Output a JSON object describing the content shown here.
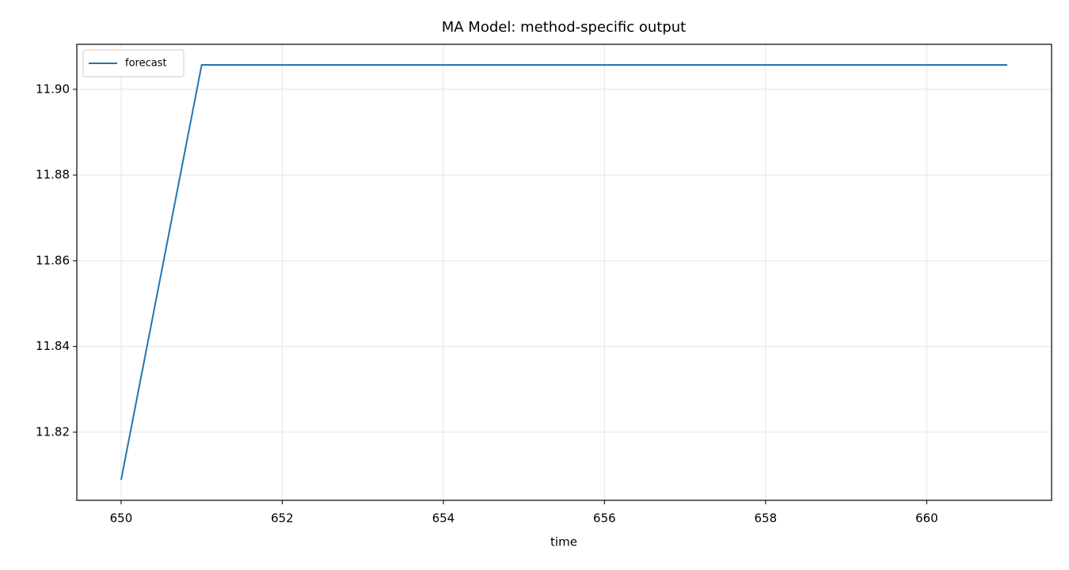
{
  "chart_data": {
    "type": "line",
    "title": "MA Model: method-specific output",
    "xlabel": "time",
    "x": [
      650,
      651,
      652,
      653,
      654,
      655,
      656,
      657,
      658,
      659,
      660,
      661
    ],
    "series": [
      {
        "name": "forecast",
        "color": "#1f77b4",
        "values": [
          11.8089,
          11.9057,
          11.9057,
          11.9057,
          11.9057,
          11.9057,
          11.9057,
          11.9057,
          11.9057,
          11.9057,
          11.9057,
          11.9057
        ]
      }
    ],
    "xlim": [
      649.45,
      661.55
    ],
    "xticks": [
      650,
      652,
      654,
      656,
      658,
      660
    ],
    "ylim": [
      11.8041,
      11.9105
    ],
    "yticks": [
      11.82,
      11.84,
      11.86,
      11.88,
      {
        "value": 11.9,
        "label": "11.90"
      }
    ],
    "grid": true,
    "legend": "upper left"
  }
}
